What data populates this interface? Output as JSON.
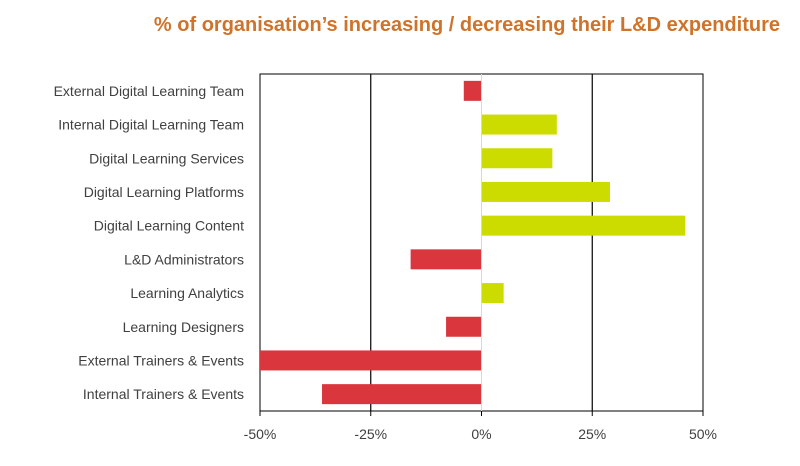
{
  "chart_data": {
    "type": "bar",
    "orientation": "horizontal",
    "title": "% of organisation’s increasing / decreasing their L&D expenditure",
    "categories": [
      "External Digital Learning Team",
      "Internal Digital Learning Team",
      "Digital Learning Services",
      "Digital Learning Platforms",
      "Digital Learning Content",
      "L&D Administrators",
      "Learning Analytics",
      "Learning Designers",
      "External Trainers & Events",
      "Internal Trainers & Events"
    ],
    "values": [
      -4,
      17,
      16,
      29,
      46,
      -16,
      5,
      -8,
      -50,
      -36
    ],
    "xlim": [
      -50,
      50
    ],
    "xticks": [
      -50,
      -25,
      0,
      25,
      50
    ],
    "xtick_labels": [
      "-50%",
      "-25%",
      "0%",
      "25%",
      "50%"
    ],
    "grid": true,
    "colors": {
      "positive": "#cddc00",
      "negative": "#d9363e",
      "title": "#d0732a",
      "axis": "#000000",
      "label": "#404040"
    }
  }
}
